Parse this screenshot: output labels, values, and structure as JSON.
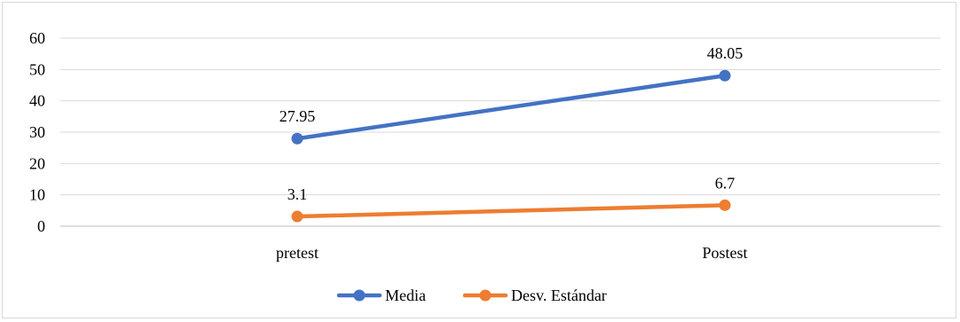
{
  "chart_data": {
    "type": "line",
    "categories": [
      "pretest",
      "Postest"
    ],
    "series": [
      {
        "name": "Media",
        "values": [
          27.95,
          48.05
        ],
        "color": "#4472c4",
        "labels": [
          "27.95",
          "48.05"
        ]
      },
      {
        "name": "Desv. Estándar",
        "values": [
          3.1,
          6.7
        ],
        "color": "#ed7d31",
        "labels": [
          "3.1",
          "6.7"
        ]
      }
    ],
    "yticks": [
      "0",
      "10",
      "20",
      "30",
      "40",
      "50",
      "60"
    ],
    "ylim": [
      0,
      60
    ],
    "grid": true,
    "legend": "bottom"
  }
}
